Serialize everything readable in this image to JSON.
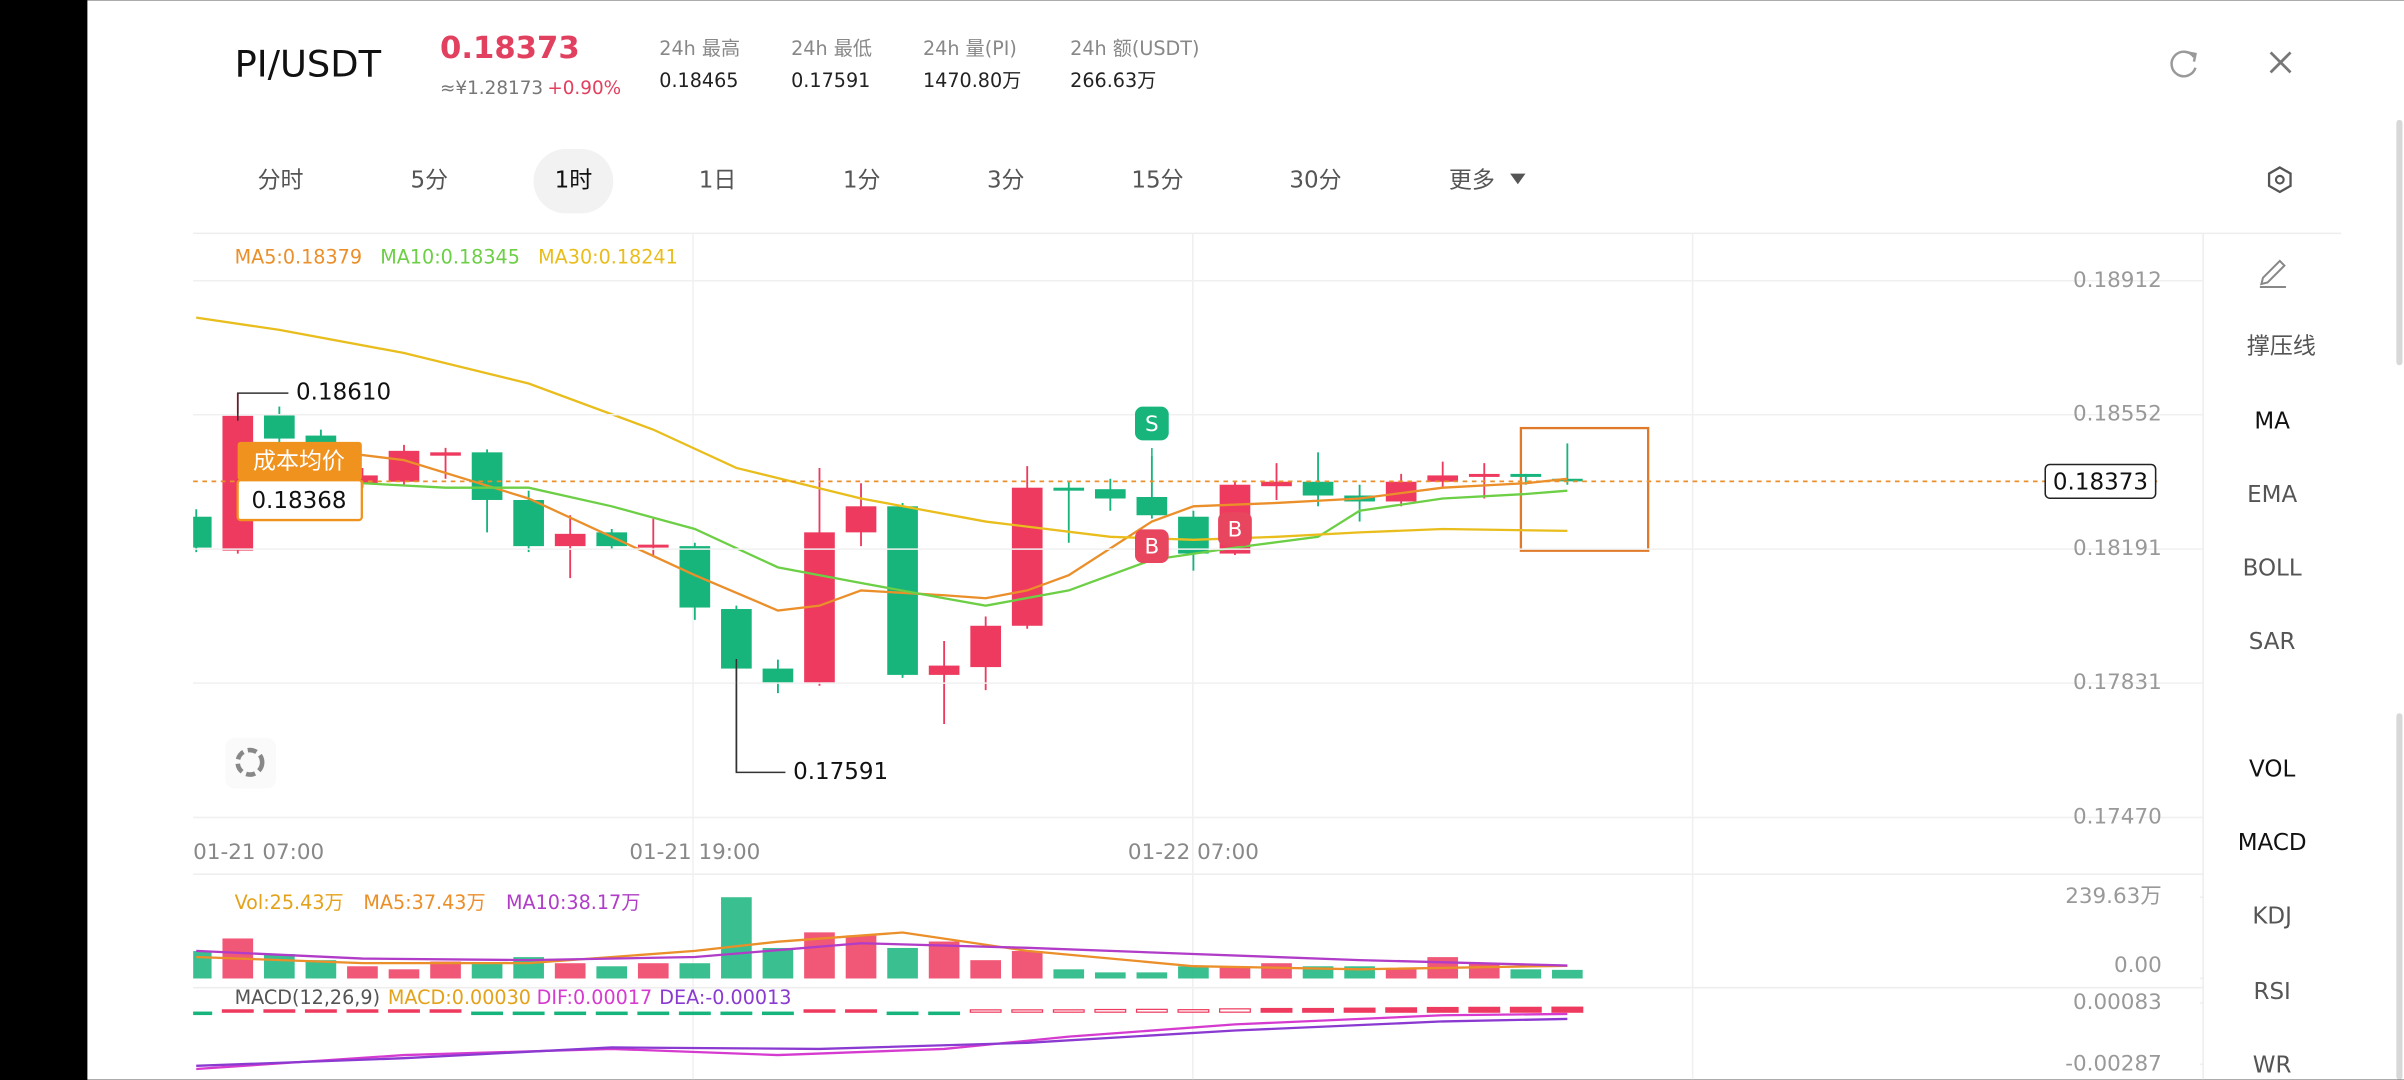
{
  "header": {
    "pair": "PI/USDT",
    "price": "0.18373",
    "cny": "≈¥1.28173",
    "change": "+0.90%",
    "stats": [
      {
        "label": "24h  最高",
        "value": "0.18465"
      },
      {
        "label": "24h  最低",
        "value": "0.17591"
      },
      {
        "label": "24h  量(PI)",
        "value": "1470.80万"
      },
      {
        "label": "24h  额(USDT)",
        "value": "266.63万"
      }
    ]
  },
  "tabs": [
    "分时",
    "5分",
    "1时",
    "1日",
    "1分",
    "3分",
    "15分",
    "30分",
    "更多"
  ],
  "active_tab": 2,
  "indicators": [
    "撑压线",
    "MA",
    "EMA",
    "BOLL",
    "SAR",
    "VOL",
    "MACD",
    "KDJ",
    "RSI",
    "WR"
  ],
  "chart_data": [
    {
      "type": "candlestick",
      "categories": [
        "01-21 07:00",
        null,
        null,
        null,
        null,
        null,
        null,
        null,
        null,
        null,
        null,
        null,
        "01-21 19:00",
        null,
        null,
        null,
        null,
        null,
        null,
        null,
        null,
        null,
        null,
        null,
        "01-22 07:00",
        null,
        null,
        null,
        null,
        null,
        null,
        null,
        null,
        null
      ],
      "open": [
        0.18278,
        0.18187,
        0.18554,
        0.18496,
        0.18368,
        0.18372,
        0.18442,
        0.18451,
        0.18323,
        0.18199,
        0.18236,
        0.18195,
        0.18199,
        0.1803,
        0.1787,
        0.17833,
        0.18236,
        0.18306,
        0.17853,
        0.17874,
        0.17985,
        0.18356,
        0.18352,
        0.18331,
        0.18278,
        0.18179,
        0.1836,
        0.18372,
        0.18335,
        0.18319,
        0.18372,
        0.18385,
        0.18393,
        0.1838
      ],
      "high": [
        0.18298,
        0.1861,
        0.18574,
        0.18512,
        0.18409,
        0.18471,
        0.18463,
        0.18459,
        0.18348,
        0.18282,
        0.18245,
        0.18273,
        0.18208,
        0.18039,
        0.17894,
        0.18409,
        0.18368,
        0.18315,
        0.17944,
        0.1801,
        0.18414,
        0.18372,
        0.1838,
        0.18442,
        0.18294,
        0.18372,
        0.18422,
        0.18451,
        0.18364,
        0.18393,
        0.18426,
        0.18422,
        0.18393,
        0.18475
      ],
      "low": [
        0.18183,
        0.18179,
        0.18463,
        0.18446,
        0.18356,
        0.18364,
        0.1838,
        0.18236,
        0.18183,
        0.18113,
        0.18191,
        0.18175,
        0.18001,
        0.17591,
        0.17804,
        0.17824,
        0.18199,
        0.17845,
        0.17721,
        0.17812,
        0.17977,
        0.18208,
        0.18294,
        0.18273,
        0.18133,
        0.18175,
        0.18323,
        0.18306,
        0.18265,
        0.18306,
        0.18356,
        0.18327,
        0.18364,
        0.18364
      ],
      "close": [
        0.18195,
        0.18549,
        0.18488,
        0.18471,
        0.18389,
        0.18455,
        0.18451,
        0.18323,
        0.18199,
        0.18232,
        0.18199,
        0.18203,
        0.18034,
        0.1787,
        0.17833,
        0.18236,
        0.18306,
        0.17853,
        0.17878,
        0.17985,
        0.18356,
        0.18348,
        0.18327,
        0.18282,
        0.18179,
        0.18364,
        0.18372,
        0.18335,
        0.18319,
        0.18372,
        0.18389,
        0.18393,
        0.18385,
        0.18373
      ],
      "up_color": "#ee3a5e",
      "down_color": "#17b57c",
      "ylim": [
        0.17441,
        0.19027
      ],
      "yticks": [
        0.18912,
        0.18552,
        0.18191,
        0.17831,
        {
          "value": 0.1747,
          "label": "0.17470"
        }
      ],
      "grid": true,
      "lines": [
        {
          "legend": "MA5:0.18379",
          "color": "#ea8f2a",
          "x": [
            2,
            5,
            8,
            10,
            12,
            14,
            15,
            16,
            18,
            19,
            20,
            21,
            23,
            24,
            26,
            28,
            30,
            32,
            33
          ],
          "values": [
            0.18471,
            0.1843,
            0.18327,
            0.18224,
            0.18121,
            0.18026,
            0.18039,
            0.1808,
            0.18067,
            0.18059,
            0.1808,
            0.18121,
            0.18265,
            0.18306,
            0.18315,
            0.18327,
            0.18356,
            0.18368,
            0.1838
          ]
        },
        {
          "legend": "MA10:0.18345",
          "color": "#6ccf45",
          "x": [
            4,
            6,
            8,
            10,
            12,
            14,
            16,
            18,
            19,
            21,
            23,
            25,
            27,
            28,
            30,
            32,
            33
          ],
          "values": [
            0.18368,
            0.18356,
            0.18356,
            0.18306,
            0.18245,
            0.18142,
            0.181,
            0.18059,
            0.18039,
            0.1808,
            0.18162,
            0.18195,
            0.18224,
            0.18294,
            0.18327,
            0.18339,
            0.18348
          ]
        },
        {
          "legend": "MA30:0.18241",
          "color": "#e9bd1c",
          "x": [
            0,
            2,
            5,
            8,
            11,
            13,
            16,
            19,
            22,
            24,
            26,
            28,
            30,
            33
          ],
          "values": [
            0.18813,
            0.1878,
            0.18718,
            0.18636,
            0.18512,
            0.18409,
            0.18327,
            0.18265,
            0.18224,
            0.18216,
            0.18224,
            0.18236,
            0.18245,
            0.1824
          ]
        }
      ],
      "annotations": [
        {
          "value": 0.1861,
          "label": "0.18610"
        },
        {
          "value": 0.17591
        }
      ],
      "sell_signals": [
        null,
        null,
        null,
        null,
        null,
        null,
        null,
        null,
        null,
        null,
        null,
        null,
        null,
        null,
        null,
        null,
        null,
        null,
        null,
        null,
        null,
        null,
        null,
        "S",
        null,
        null,
        null,
        null,
        null,
        null,
        null,
        null,
        null,
        null
      ],
      "buy_signals": [
        null,
        null,
        null,
        null,
        null,
        null,
        null,
        null,
        null,
        null,
        null,
        null,
        null,
        null,
        null,
        null,
        null,
        null,
        null,
        null,
        null,
        null,
        null,
        "B",
        null,
        "B",
        null,
        null,
        null,
        null,
        null,
        null,
        null,
        null
      ],
      "cost_line": {
        "label": "成本均价",
        "value": 0.18368
      },
      "last_price": 0.18373
    },
    {
      "type": "bar",
      "legend": "Vol:25.43万",
      "values": [
        81,
        118,
        72,
        54,
        36,
        27,
        50,
        45,
        63,
        45,
        36,
        45,
        45,
        239.63,
        90,
        136,
        127,
        90,
        109,
        54,
        81,
        27,
        18,
        18,
        36,
        36,
        45,
        36,
        36,
        27,
        63,
        45,
        27,
        25.43
      ],
      "ylim": [
        0,
        239.63
      ],
      "yticks": [
        {
          "value": 239.63,
          "label": "239.63万"
        },
        {
          "value": 0,
          "label": "0.00"
        }
      ],
      "lines": [
        {
          "legend": "MA5:37.43万",
          "color": "#ea8f2a",
          "x": [
            0,
            4,
            8,
            12,
            14,
            17,
            20,
            24,
            28,
            33
          ],
          "values": [
            63.3,
            45.2,
            45.2,
            81.4,
            108.5,
            135.6,
            81.4,
            36.2,
            27.1,
            37.43
          ]
        },
        {
          "legend": "MA10:38.17万",
          "color": "#b03cc8",
          "x": [
            0,
            4,
            8,
            12,
            16,
            20,
            24,
            28,
            33
          ],
          "values": [
            81.4,
            58.8,
            54.2,
            63.3,
            104,
            90.4,
            72.3,
            54.2,
            38.17
          ]
        }
      ]
    },
    {
      "type": "macd",
      "title": "MACD(12,26,9)",
      "legend": "MACD:0.00030",
      "values": [
        -0.0001,
        5e-05,
        4e-05,
        2e-05,
        3e-05,
        4e-05,
        3e-05,
        -2e-05,
        -4e-05,
        -4e-05,
        -5e-05,
        -5e-05,
        -8e-05,
        -0.00012,
        -0.0001,
        3e-05,
        5e-05,
        -2e-05,
        -1e-05,
        4e-05,
        0.00012,
        0.00014,
        0.00016,
        0.00017,
        0.00015,
        0.0002,
        0.00022,
        0.00022,
        0.00024,
        0.00026,
        0.00028,
        0.00029,
        0.00029,
        0.0003
      ],
      "ylim": [
        -0.00287,
        0.00083
      ],
      "yticks": [
        0.00083,
        -0.00287
      ],
      "lines": [
        {
          "legend": "DIF:0.00017",
          "color": "#d63bd0",
          "x": [
            0,
            5,
            10,
            14,
            18,
            21,
            25,
            30,
            33
          ],
          "values": [
            -0.00315,
            -0.00231,
            -0.00194,
            -0.00231,
            -0.00194,
            -0.0012,
            -0.00046,
            9e-05,
            0.00017
          ]
        },
        {
          "legend": "DEA:-0.00013",
          "color": "#8a3ad0",
          "x": [
            0,
            5,
            10,
            15,
            20,
            25,
            30,
            33
          ],
          "values": [
            -0.00296,
            -0.0025,
            -0.00185,
            -0.00194,
            -0.00157,
            -0.00083,
            -0.00028,
            -0.00013
          ]
        }
      ]
    }
  ]
}
